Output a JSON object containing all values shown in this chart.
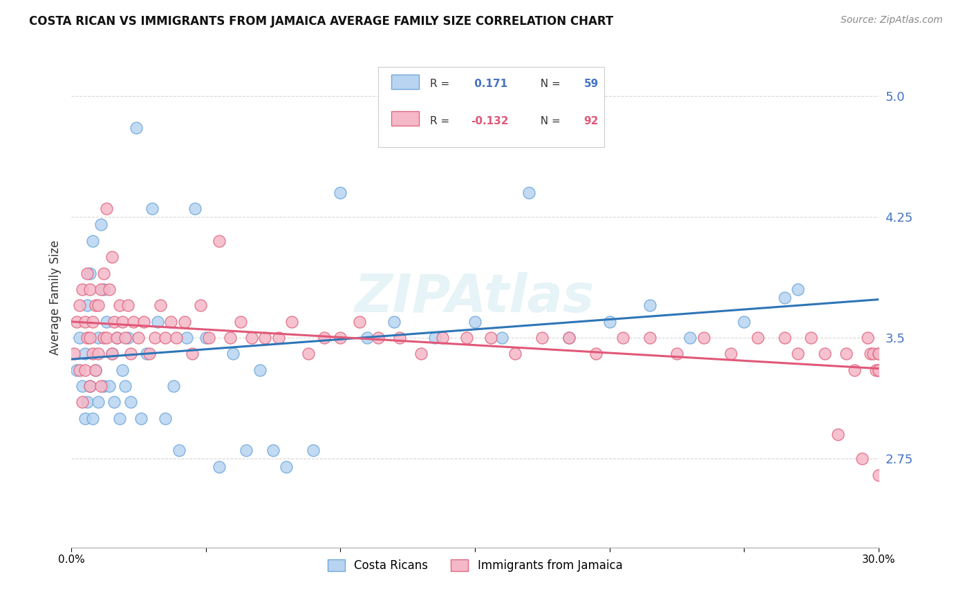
{
  "title": "COSTA RICAN VS IMMIGRANTS FROM JAMAICA AVERAGE FAMILY SIZE CORRELATION CHART",
  "source": "Source: ZipAtlas.com",
  "ylabel": "Average Family Size",
  "xlim": [
    0.0,
    0.3
  ],
  "ylim": [
    2.2,
    5.3
  ],
  "yticks": [
    2.75,
    3.5,
    4.25,
    5.0
  ],
  "xticks": [
    0.0,
    0.05,
    0.1,
    0.15,
    0.2,
    0.25,
    0.3
  ],
  "xtick_labels": [
    "0.0%",
    "",
    "",
    "",
    "",
    "",
    "30.0%"
  ],
  "background_color": "#ffffff",
  "grid_color": "#cccccc",
  "watermark": "ZIPAtlas",
  "series": [
    {
      "name": "Costa Ricans",
      "R": 0.171,
      "N": 59,
      "color_fill": "#b8d4f0",
      "color_edge": "#6fa8dc",
      "line_color": "#2e75b6",
      "x": [
        0.002,
        0.003,
        0.004,
        0.005,
        0.005,
        0.006,
        0.006,
        0.007,
        0.007,
        0.008,
        0.008,
        0.009,
        0.01,
        0.01,
        0.011,
        0.012,
        0.012,
        0.013,
        0.014,
        0.015,
        0.016,
        0.017,
        0.018,
        0.019,
        0.02,
        0.021,
        0.022,
        0.024,
        0.026,
        0.028,
        0.03,
        0.032,
        0.035,
        0.038,
        0.04,
        0.043,
        0.046,
        0.05,
        0.055,
        0.06,
        0.065,
        0.07,
        0.075,
        0.08,
        0.09,
        0.1,
        0.11,
        0.12,
        0.135,
        0.15,
        0.16,
        0.17,
        0.185,
        0.2,
        0.215,
        0.23,
        0.25,
        0.265,
        0.27
      ],
      "y": [
        3.3,
        3.5,
        3.2,
        3.0,
        3.4,
        3.1,
        3.7,
        3.2,
        3.9,
        3.0,
        4.1,
        3.3,
        3.1,
        3.5,
        4.2,
        3.8,
        3.2,
        3.6,
        3.2,
        3.4,
        3.1,
        3.5,
        3.0,
        3.3,
        3.2,
        3.5,
        3.1,
        4.8,
        3.0,
        3.4,
        4.3,
        3.6,
        3.0,
        3.2,
        2.8,
        3.5,
        4.3,
        3.5,
        2.7,
        3.4,
        2.8,
        3.3,
        2.8,
        2.7,
        2.8,
        4.4,
        3.5,
        3.6,
        3.5,
        3.6,
        3.5,
        4.4,
        3.5,
        3.6,
        3.7,
        3.5,
        3.6,
        3.75,
        3.8
      ]
    },
    {
      "name": "Immigrants from Jamaica",
      "R": -0.132,
      "N": 92,
      "color_fill": "#f5b8c8",
      "color_edge": "#e06880",
      "line_color": "#e05878",
      "x": [
        0.001,
        0.002,
        0.003,
        0.003,
        0.004,
        0.004,
        0.005,
        0.005,
        0.006,
        0.006,
        0.007,
        0.007,
        0.007,
        0.008,
        0.008,
        0.009,
        0.009,
        0.01,
        0.01,
        0.011,
        0.011,
        0.012,
        0.012,
        0.013,
        0.013,
        0.014,
        0.015,
        0.015,
        0.016,
        0.017,
        0.018,
        0.019,
        0.02,
        0.021,
        0.022,
        0.023,
        0.025,
        0.027,
        0.029,
        0.031,
        0.033,
        0.035,
        0.037,
        0.039,
        0.042,
        0.045,
        0.048,
        0.051,
        0.055,
        0.059,
        0.063,
        0.067,
        0.072,
        0.077,
        0.082,
        0.088,
        0.094,
        0.1,
        0.107,
        0.114,
        0.122,
        0.13,
        0.138,
        0.147,
        0.156,
        0.165,
        0.175,
        0.185,
        0.195,
        0.205,
        0.215,
        0.225,
        0.235,
        0.245,
        0.255,
        0.265,
        0.27,
        0.275,
        0.28,
        0.285,
        0.288,
        0.291,
        0.294,
        0.296,
        0.297,
        0.298,
        0.299,
        0.3,
        0.3,
        0.3,
        0.3,
        0.3
      ],
      "y": [
        3.4,
        3.6,
        3.3,
        3.7,
        3.1,
        3.8,
        3.3,
        3.6,
        3.5,
        3.9,
        3.2,
        3.5,
        3.8,
        3.4,
        3.6,
        3.3,
        3.7,
        3.4,
        3.7,
        3.2,
        3.8,
        3.5,
        3.9,
        4.3,
        3.5,
        3.8,
        3.4,
        4.0,
        3.6,
        3.5,
        3.7,
        3.6,
        3.5,
        3.7,
        3.4,
        3.6,
        3.5,
        3.6,
        3.4,
        3.5,
        3.7,
        3.5,
        3.6,
        3.5,
        3.6,
        3.4,
        3.7,
        3.5,
        4.1,
        3.5,
        3.6,
        3.5,
        3.5,
        3.5,
        3.6,
        3.4,
        3.5,
        3.5,
        3.6,
        3.5,
        3.5,
        3.4,
        3.5,
        3.5,
        3.5,
        3.4,
        3.5,
        3.5,
        3.4,
        3.5,
        3.5,
        3.4,
        3.5,
        3.4,
        3.5,
        3.5,
        3.4,
        3.5,
        3.4,
        2.9,
        3.4,
        3.3,
        2.75,
        3.5,
        3.4,
        3.4,
        3.3,
        3.3,
        3.3,
        2.65,
        3.4,
        3.4
      ]
    }
  ],
  "legend_R_label": [
    "R = ",
    "R = "
  ],
  "legend_R_value": [
    " 0.171",
    "-0.132"
  ],
  "legend_N_label": "N = ",
  "legend_N_value": [
    59,
    92
  ]
}
